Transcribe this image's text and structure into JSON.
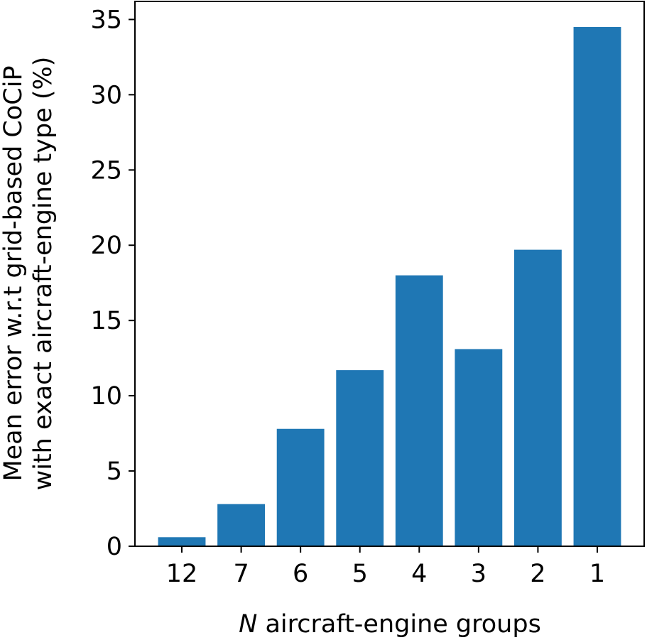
{
  "chart_data": {
    "type": "bar",
    "categories": [
      "12",
      "7",
      "6",
      "5",
      "4",
      "3",
      "2",
      "1"
    ],
    "values": [
      0.6,
      2.8,
      7.8,
      11.7,
      18.0,
      13.1,
      19.7,
      34.5
    ],
    "title": "",
    "xlabel_italic": "N",
    "xlabel": " aircraft-engine groups",
    "ylabel": [
      "Mean error w.r.t grid-based CoCiP",
      "with exact aircraft-engine type (%)"
    ],
    "ylim": [
      0,
      36.2
    ],
    "yticks": [
      0,
      5,
      10,
      15,
      20,
      25,
      30,
      35
    ],
    "grid": false,
    "legend": "none",
    "bar_color": "#1f77b4"
  }
}
